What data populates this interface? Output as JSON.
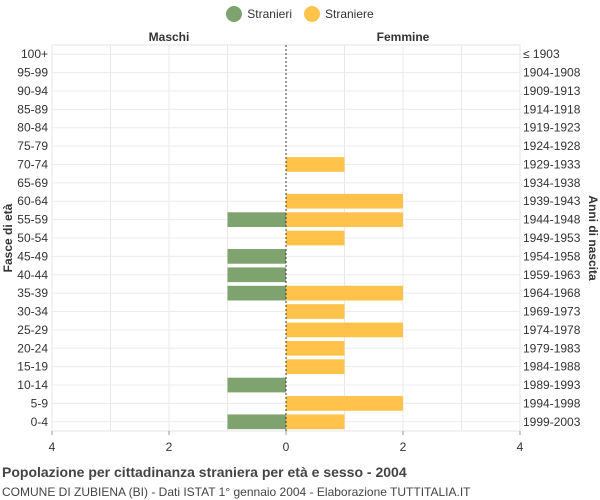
{
  "legend": {
    "male_label": "Stranieri",
    "female_label": "Straniere"
  },
  "footer": {
    "title": "Popolazione per cittadinanza straniera per età e sesso - 2004",
    "subtitle": "COMUNE DI ZUBIENA (BI) - Dati ISTAT 1° gennaio 2004 - Elaborazione TUTTITALIA.IT"
  },
  "chart_data": {
    "type": "bar",
    "orientation": "horizontal-pyramid",
    "left_header": "Maschi",
    "right_header": "Femmine",
    "ylabel_left": "Fasce di età",
    "ylabel_right": "Anni di nascita",
    "xlim": [
      -4,
      4
    ],
    "xticks": [
      -4,
      -2,
      0,
      2,
      4
    ],
    "xtick_labels": [
      "4",
      "2",
      "0",
      "2",
      "4"
    ],
    "grid": true,
    "legend_position": "top-center",
    "categories": [
      "100+",
      "95-99",
      "90-94",
      "85-89",
      "80-84",
      "75-79",
      "70-74",
      "65-69",
      "60-64",
      "55-59",
      "50-54",
      "45-49",
      "40-44",
      "35-39",
      "30-34",
      "25-29",
      "20-24",
      "15-19",
      "10-14",
      "5-9",
      "0-4"
    ],
    "birth_years": [
      "≤ 1903",
      "1904-1908",
      "1909-1913",
      "1914-1918",
      "1919-1923",
      "1924-1928",
      "1929-1933",
      "1934-1938",
      "1939-1943",
      "1944-1948",
      "1949-1953",
      "1954-1958",
      "1959-1963",
      "1964-1968",
      "1969-1973",
      "1974-1978",
      "1979-1983",
      "1984-1988",
      "1989-1993",
      "1994-1998",
      "1999-2003"
    ],
    "series": [
      {
        "name": "Stranieri",
        "color": "#7fa36f",
        "values": [
          0,
          0,
          0,
          0,
          0,
          0,
          0,
          0,
          0,
          1,
          0,
          1,
          1,
          1,
          0,
          0,
          0,
          0,
          1,
          0,
          1
        ]
      },
      {
        "name": "Straniere",
        "color": "#ffc34c",
        "values": [
          0,
          0,
          0,
          0,
          0,
          0,
          1,
          0,
          2,
          2,
          1,
          0,
          0,
          2,
          1,
          2,
          1,
          1,
          0,
          2,
          1
        ]
      }
    ]
  }
}
